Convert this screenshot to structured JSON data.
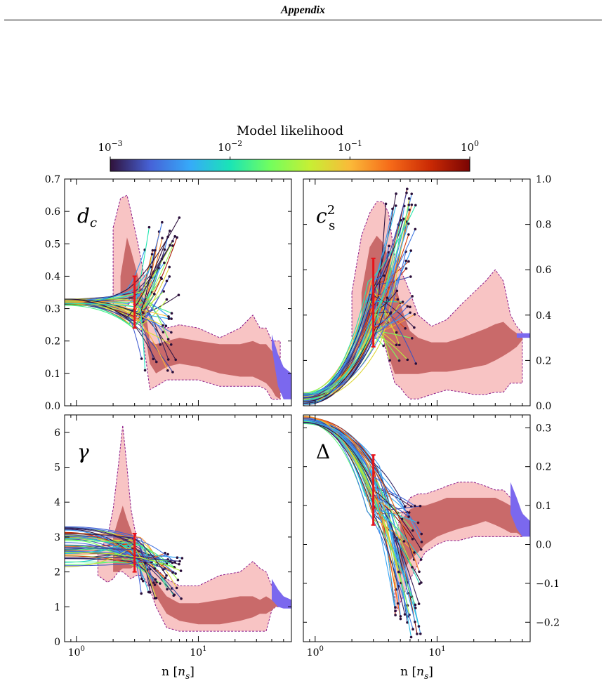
{
  "header": {
    "title": "Appendix"
  },
  "colorbar": {
    "label": "Model likelihood",
    "ticks": [
      "10^{-3}",
      "10^{-2}",
      "10^{-1}",
      "10^{0}"
    ],
    "colormap": [
      "#30123b",
      "#4662d7",
      "#36aaf9",
      "#1ae4b6",
      "#72fe5e",
      "#c7ef34",
      "#faba39",
      "#f66b19",
      "#cb2a04",
      "#7a0403"
    ]
  },
  "colors": {
    "outer_band": "#f8c4c4",
    "inner_band": "#c96a6a",
    "band_edge": "#8b1a8b",
    "pqcd_band": "#7b68ee",
    "errorbar": "#e8141b"
  },
  "chart_data": [
    {
      "type": "area",
      "panel": "top-left",
      "label": "d_c",
      "xlabel": "n [n_s]",
      "xscale": "log",
      "xlim": [
        0.8,
        58
      ],
      "ylim": [
        0,
        0.7
      ],
      "yaxis": "left",
      "yticks": [
        0.0,
        0.1,
        0.2,
        0.3,
        0.4,
        0.5,
        0.6,
        0.7
      ],
      "outer": {
        "x": [
          2.0,
          2.3,
          2.6,
          2.8,
          3.2,
          3.6,
          4.0,
          4.5,
          5.5,
          7,
          10,
          15,
          22,
          28,
          32,
          36,
          40,
          43,
          47
        ],
        "upper": [
          0.55,
          0.64,
          0.65,
          0.6,
          0.5,
          0.4,
          0.28,
          0.25,
          0.24,
          0.25,
          0.24,
          0.21,
          0.24,
          0.28,
          0.24,
          0.24,
          0.2,
          0.2,
          0.2
        ],
        "lower": [
          0.3,
          0.3,
          0.31,
          0.32,
          0.3,
          0.18,
          0.05,
          0.06,
          0.08,
          0.08,
          0.08,
          0.06,
          0.06,
          0.06,
          0.06,
          0.05,
          0.02,
          0.02,
          0.02
        ]
      },
      "inner": {
        "x": [
          2.3,
          2.6,
          2.8,
          3.2,
          3.6,
          4.0,
          4.5,
          5.5,
          7,
          10,
          15,
          22,
          28,
          32,
          36,
          40,
          43,
          47
        ],
        "upper": [
          0.4,
          0.52,
          0.48,
          0.4,
          0.32,
          0.2,
          0.19,
          0.2,
          0.21,
          0.2,
          0.19,
          0.19,
          0.2,
          0.19,
          0.19,
          0.17,
          0.16,
          0.15
        ],
        "lower": [
          0.34,
          0.34,
          0.33,
          0.3,
          0.24,
          0.13,
          0.1,
          0.12,
          0.13,
          0.12,
          0.1,
          0.09,
          0.09,
          0.08,
          0.07,
          0.05,
          0.03,
          0.02
        ]
      },
      "pqcd": {
        "x": [
          40,
          45,
          50,
          58
        ],
        "upper": [
          0.22,
          0.16,
          0.12,
          0.1
        ],
        "lower": [
          0.18,
          0.06,
          0.02,
          0.02
        ]
      },
      "errorbar": {
        "x": 3.0,
        "y": 0.32,
        "low": 0.24,
        "high": 0.4
      },
      "curves": {
        "start": {
          "x": 0.8,
          "y": 0.32,
          "spread": 0.01
        },
        "mid": {
          "x": 3.0,
          "y": 0.3,
          "spread": 0.06
        },
        "end": {
          "xmin": 3.4,
          "xmax": 7.0,
          "ymin": 0.1,
          "ymax": 0.6
        },
        "count": 55,
        "seed": 11
      }
    },
    {
      "type": "area",
      "panel": "top-right",
      "label": "c_s^2",
      "xlabel": "n [n_s]",
      "xscale": "log",
      "xlim": [
        0.8,
        58
      ],
      "ylim": [
        0,
        1.0
      ],
      "yaxis": "right",
      "yticks": [
        0.0,
        0.2,
        0.4,
        0.6,
        0.8,
        1.0
      ],
      "outer": {
        "x": [
          2.0,
          2.4,
          2.8,
          3.2,
          3.6,
          4.0,
          4.5,
          5.0,
          5.5,
          6.0,
          7.0,
          9,
          12,
          16,
          20,
          25,
          30,
          35,
          40,
          45,
          50
        ],
        "upper": [
          0.5,
          0.75,
          0.85,
          0.9,
          0.9,
          0.85,
          0.65,
          0.6,
          0.55,
          0.5,
          0.4,
          0.35,
          0.38,
          0.45,
          0.5,
          0.55,
          0.6,
          0.55,
          0.4,
          0.35,
          0.32
        ],
        "lower": [
          0.3,
          0.25,
          0.28,
          0.3,
          0.3,
          0.2,
          0.1,
          0.08,
          0.05,
          0.03,
          0.03,
          0.05,
          0.07,
          0.06,
          0.05,
          0.05,
          0.06,
          0.06,
          0.1,
          0.1,
          0.1
        ]
      },
      "inner": {
        "x": [
          2.4,
          2.8,
          3.2,
          3.6,
          4.0,
          4.5,
          5.0,
          5.5,
          6.0,
          7.0,
          9,
          12,
          16,
          20,
          25,
          30,
          35,
          40,
          45,
          50
        ],
        "upper": [
          0.5,
          0.7,
          0.75,
          0.72,
          0.65,
          0.55,
          0.45,
          0.38,
          0.33,
          0.3,
          0.28,
          0.28,
          0.3,
          0.32,
          0.34,
          0.36,
          0.37,
          0.34,
          0.32,
          0.31
        ],
        "lower": [
          0.3,
          0.32,
          0.36,
          0.3,
          0.22,
          0.14,
          0.14,
          0.14,
          0.14,
          0.14,
          0.15,
          0.15,
          0.16,
          0.17,
          0.18,
          0.2,
          0.22,
          0.24,
          0.26,
          0.29
        ]
      },
      "pqcd": {
        "x": [
          45,
          50,
          55,
          58
        ],
        "upper": [
          0.32,
          0.32,
          0.32,
          0.32
        ],
        "lower": [
          0.3,
          0.3,
          0.3,
          0.3
        ]
      },
      "errorbar": {
        "x": 3.0,
        "y": 0.4,
        "low": 0.26,
        "high": 0.65
      },
      "curves": {
        "start": {
          "x": 0.8,
          "y": 0.03,
          "spread": 0.03
        },
        "mid": {
          "x": 3.0,
          "y": 0.42,
          "spread": 0.15
        },
        "end": {
          "xmin": 3.6,
          "xmax": 7.0,
          "ymin": 0.18,
          "ymax": 1.0
        },
        "count": 55,
        "seed": 23
      }
    },
    {
      "type": "area",
      "panel": "bottom-left",
      "label": "γ",
      "xlabel": "n [n_s]",
      "xscale": "log",
      "xlim": [
        0.8,
        58
      ],
      "ylim": [
        0,
        6.5
      ],
      "yaxis": "left",
      "yticks": [
        0,
        1,
        2,
        3,
        4,
        5,
        6
      ],
      "xticks": [
        "10^0",
        "10^1"
      ],
      "outer": {
        "x": [
          1.5,
          1.8,
          2.0,
          2.2,
          2.4,
          2.6,
          2.8,
          3.1,
          3.5,
          4.0,
          4.5,
          5.5,
          7,
          10,
          15,
          22,
          28,
          32,
          36,
          40,
          43,
          47
        ],
        "upper": [
          2.5,
          3.0,
          3.8,
          5.0,
          6.2,
          5.0,
          3.8,
          3.0,
          2.7,
          2.4,
          2.1,
          1.8,
          1.6,
          1.6,
          1.9,
          2.0,
          2.3,
          2.1,
          2.0,
          1.6,
          1.4,
          1.3
        ],
        "lower": [
          1.9,
          1.7,
          1.8,
          2.0,
          2.0,
          1.9,
          1.8,
          1.9,
          1.9,
          1.5,
          1.0,
          0.4,
          0.3,
          0.3,
          0.3,
          0.3,
          0.3,
          0.3,
          0.3,
          0.9,
          1.0,
          1.0
        ]
      },
      "inner": {
        "x": [
          2.0,
          2.2,
          2.4,
          2.6,
          2.8,
          3.1,
          3.5,
          4.0,
          4.5,
          5.5,
          7,
          10,
          15,
          22,
          28,
          32,
          36,
          40,
          43,
          47
        ],
        "upper": [
          3.0,
          3.5,
          3.9,
          3.5,
          3.2,
          2.7,
          2.4,
          2.0,
          1.7,
          1.3,
          1.1,
          1.1,
          1.2,
          1.3,
          1.3,
          1.2,
          1.3,
          1.2,
          1.1,
          1.1
        ],
        "lower": [
          2.0,
          2.0,
          2.1,
          2.1,
          2.1,
          2.2,
          2.1,
          1.8,
          1.3,
          0.8,
          0.6,
          0.5,
          0.5,
          0.6,
          0.7,
          0.8,
          0.8,
          0.9,
          1.0,
          1.0
        ]
      },
      "pqcd": {
        "x": [
          40,
          45,
          50,
          58
        ],
        "upper": [
          1.8,
          1.5,
          1.3,
          1.2
        ],
        "lower": [
          1.2,
          1.0,
          0.95,
          0.95
        ]
      },
      "errorbar": {
        "x": 3.0,
        "y": 2.5,
        "low": 2.0,
        "high": 3.1
      },
      "curves": {
        "start": {
          "x": 0.8,
          "y": 2.7,
          "spread": 0.6
        },
        "mid": {
          "x": 3.0,
          "y": 2.6,
          "spread": 0.4
        },
        "end": {
          "xmin": 3.4,
          "xmax": 7.5,
          "ymin": 1.2,
          "ymax": 2.6
        },
        "count": 55,
        "seed": 37
      }
    },
    {
      "type": "area",
      "panel": "bottom-right",
      "label": "Δ",
      "xlabel": "n [n_s]",
      "xscale": "log",
      "xlim": [
        0.8,
        58
      ],
      "ylim": [
        -0.25,
        0.333
      ],
      "yaxis": "right",
      "yticks": [
        -0.2,
        -0.1,
        0.0,
        0.1,
        0.2,
        0.3
      ],
      "xticks": [
        "10^0",
        "10^1"
      ],
      "outer": {
        "x": [
          4.5,
          5.0,
          6.0,
          7.0,
          8,
          10,
          12,
          15,
          20,
          25,
          30,
          35,
          40,
          45,
          50
        ],
        "upper": [
          0.02,
          0.07,
          0.12,
          0.13,
          0.13,
          0.14,
          0.15,
          0.16,
          0.16,
          0.15,
          0.14,
          0.14,
          0.12,
          0.1,
          0.08
        ],
        "lower": [
          -0.18,
          -0.15,
          -0.09,
          -0.05,
          -0.02,
          0.0,
          0.01,
          0.01,
          0.02,
          0.02,
          0.02,
          0.02,
          0.02,
          0.02,
          0.02
        ]
      },
      "inner": {
        "x": [
          5.0,
          6.0,
          7.0,
          8,
          10,
          12,
          15,
          20,
          25,
          30,
          35,
          40,
          45,
          50
        ],
        "upper": [
          0.06,
          0.09,
          0.1,
          0.1,
          0.11,
          0.12,
          0.12,
          0.12,
          0.12,
          0.12,
          0.11,
          0.1,
          0.09,
          0.08
        ],
        "lower": [
          -0.08,
          -0.04,
          -0.02,
          0.0,
          0.02,
          0.03,
          0.04,
          0.05,
          0.06,
          0.05,
          0.04,
          0.03,
          0.03,
          0.02
        ]
      },
      "pqcd": {
        "x": [
          40,
          45,
          50,
          58
        ],
        "upper": [
          0.16,
          0.12,
          0.08,
          0.06
        ],
        "lower": [
          0.08,
          0.04,
          0.02,
          0.02
        ]
      },
      "errorbar": {
        "x": 3.0,
        "y": 0.14,
        "low": 0.05,
        "high": 0.23
      },
      "curves": {
        "start": {
          "x": 0.8,
          "y": 0.32,
          "spread": 0.01
        },
        "mid": {
          "x": 3.0,
          "y": 0.14,
          "spread": 0.08
        },
        "end": {
          "xmin": 4.5,
          "xmax": 7.5,
          "ymin": -0.24,
          "ymax": 0.1
        },
        "count": 55,
        "seed": 53
      }
    }
  ]
}
